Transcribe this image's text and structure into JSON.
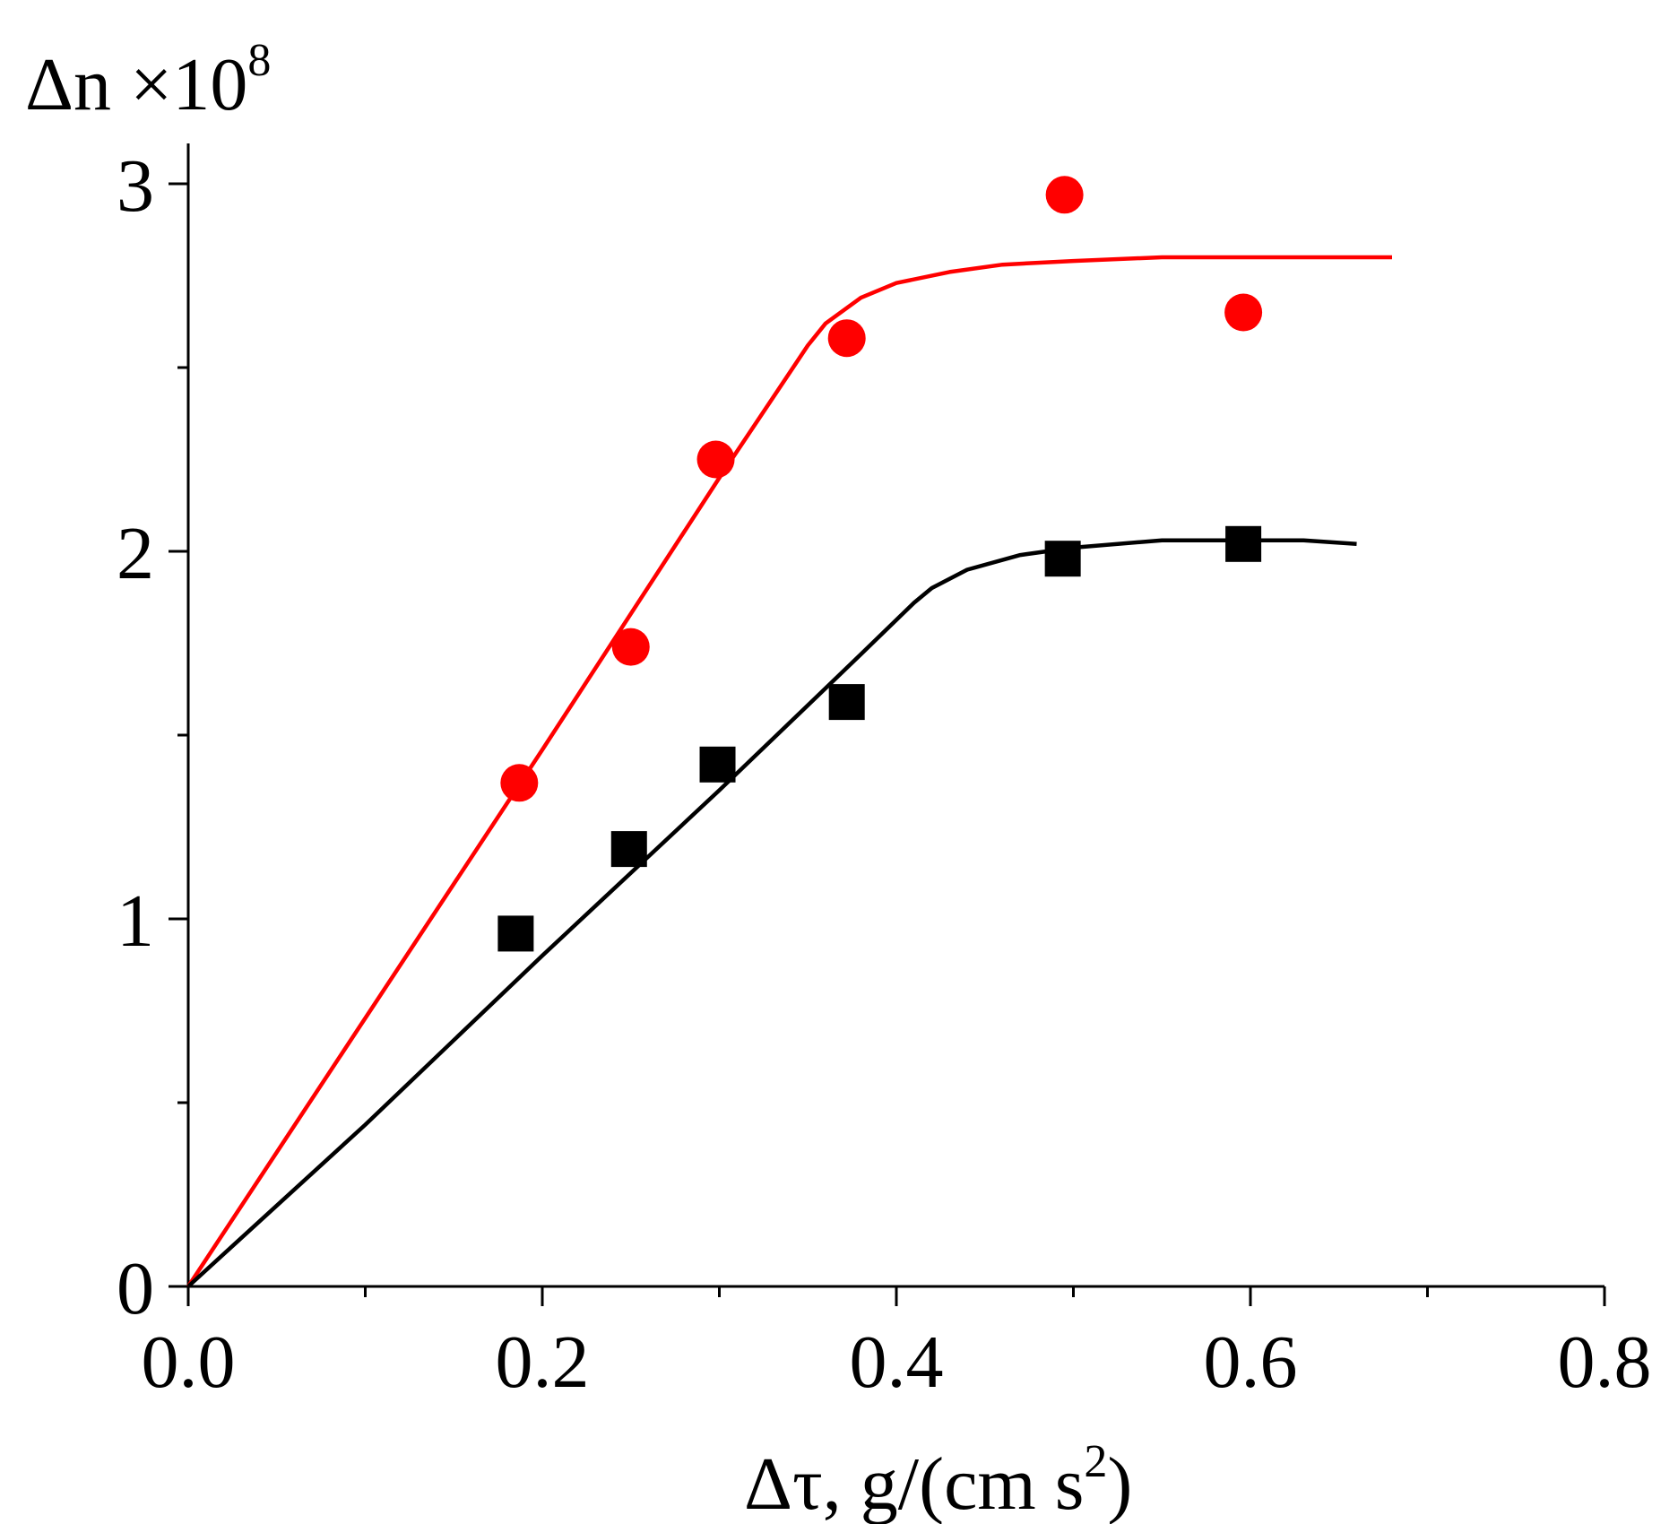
{
  "chart_data": {
    "type": "scatter",
    "title": "",
    "xlabel": "Δτ, g/(cm s",
    "xlabel_sup": "2",
    "xlabel_end": ")",
    "ylabel": "Δn ×10",
    "ylabel_sup": "8",
    "xlim": [
      0.0,
      0.8
    ],
    "ylim": [
      0,
      3
    ],
    "x_ticks": [
      0.0,
      0.2,
      0.4,
      0.6,
      0.8
    ],
    "x_tick_labels": [
      "0.0",
      "0.2",
      "0.4",
      "0.6",
      "0.8"
    ],
    "x_minor_ticks": [
      0.1,
      0.3,
      0.5,
      0.7
    ],
    "y_ticks": [
      0,
      1,
      2,
      3
    ],
    "y_tick_labels": [
      "0",
      "1",
      "2",
      "3"
    ],
    "y_minor_ticks": [
      0.5,
      1.5,
      2.5
    ],
    "grid": false,
    "series": [
      {
        "name": "red circles",
        "marker": "circle",
        "color": "#ff0000",
        "x": [
          0.187,
          0.25,
          0.298,
          0.372,
          0.495,
          0.596
        ],
        "y": [
          1.37,
          1.74,
          2.25,
          2.58,
          2.97,
          2.65
        ],
        "fit_curve": {
          "x": [
            0.0,
            0.1,
            0.2,
            0.3,
            0.35,
            0.36,
            0.38,
            0.4,
            0.43,
            0.46,
            0.5,
            0.55,
            0.6,
            0.65,
            0.68
          ],
          "y": [
            0.0,
            0.73,
            1.46,
            2.2,
            2.56,
            2.62,
            2.69,
            2.73,
            2.76,
            2.78,
            2.79,
            2.8,
            2.8,
            2.8,
            2.8
          ]
        }
      },
      {
        "name": "black squares",
        "marker": "square",
        "color": "#000000",
        "x": [
          0.185,
          0.249,
          0.299,
          0.372,
          0.494,
          0.596
        ],
        "y": [
          0.96,
          1.19,
          1.42,
          1.59,
          1.98,
          2.02
        ],
        "fit_curve": {
          "x": [
            0.0,
            0.1,
            0.2,
            0.3,
            0.38,
            0.41,
            0.42,
            0.44,
            0.47,
            0.5,
            0.55,
            0.6,
            0.63,
            0.66
          ],
          "y": [
            0.0,
            0.44,
            0.9,
            1.35,
            1.72,
            1.86,
            1.9,
            1.95,
            1.99,
            2.01,
            2.03,
            2.03,
            2.03,
            2.02
          ]
        }
      }
    ]
  }
}
